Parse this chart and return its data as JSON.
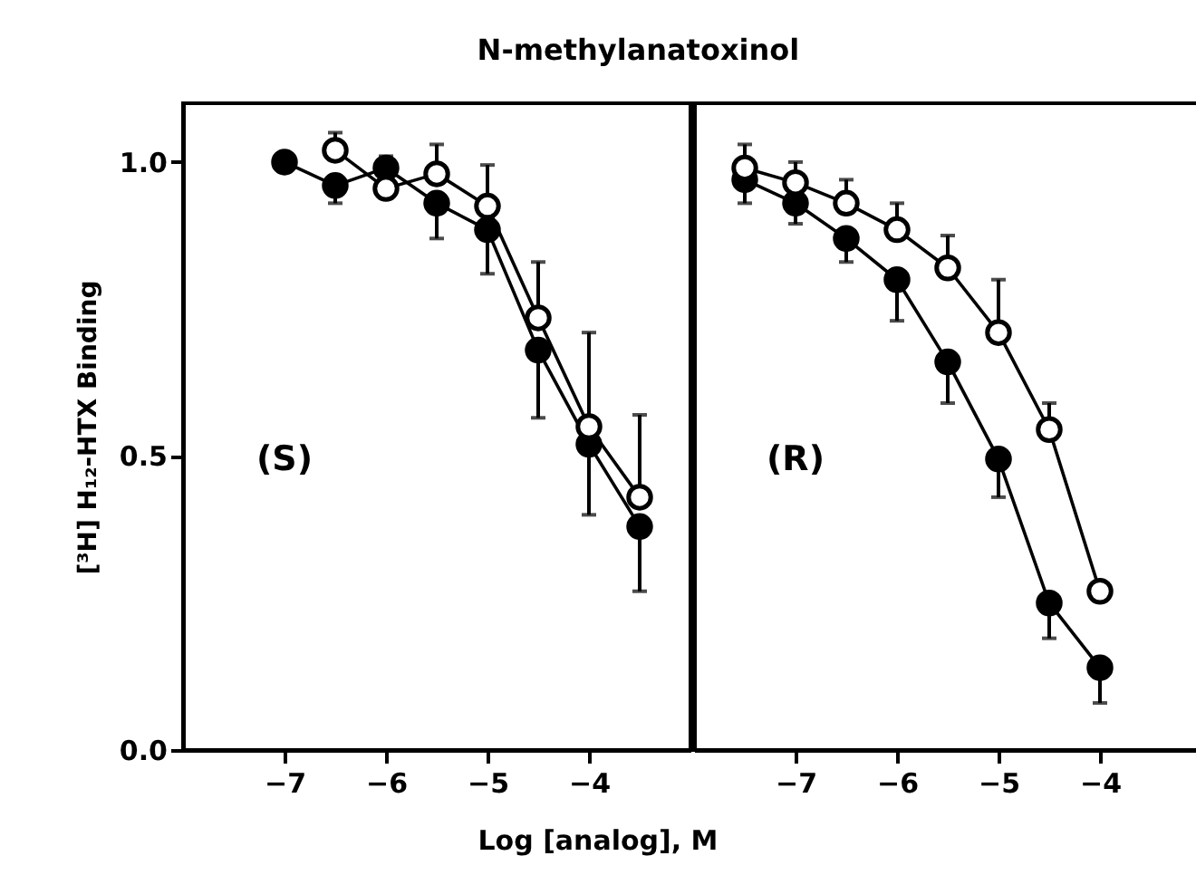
{
  "chart_data": [
    {
      "type": "line",
      "title": "N-methylanatoxinol",
      "xlabel": "Log [analog], M",
      "ylabel": "[³H] H₁₂-HTX Binding",
      "annotations": [
        "(S)"
      ],
      "marker": "circle",
      "grid": false,
      "xlim": [
        -8,
        -3
      ],
      "xticks": [
        -7,
        -6,
        -5,
        -4
      ],
      "ylim": [
        0,
        1.1
      ],
      "yticks": [
        {
          "value": 0,
          "label": "0.0"
        },
        {
          "value": 0.5,
          "label": "0.5"
        },
        {
          "value": 1,
          "label": "1.0"
        }
      ],
      "series": [
        {
          "color": "#000000",
          "x": [
            -7,
            -6.5,
            -6,
            -5.5,
            -5,
            -4.5,
            -4,
            -3.5
          ],
          "values": [
            1.0,
            0.96,
            0.99,
            0.93,
            0.885,
            0.68,
            0.52,
            0.38
          ],
          "errors": [
            null,
            [
              0.93,
              0.96
            ],
            [
              0.99,
              1.01
            ],
            [
              0.87,
              0.93
            ],
            [
              0.81,
              0.885
            ],
            [
              0.565,
              0.68
            ],
            [
              0.4,
              0.52
            ],
            [
              0.27,
              0.38
            ]
          ]
        },
        {
          "color": "#000000",
          "x": [
            -6.5,
            -6,
            -5.5,
            -5,
            -4.5,
            -4,
            -3.5
          ],
          "values": [
            1.02,
            0.955,
            0.98,
            0.925,
            0.735,
            0.55,
            0.43
          ],
          "errors": [
            [
              1.02,
              1.05
            ],
            null,
            [
              0.98,
              1.03
            ],
            [
              0.925,
              0.995
            ],
            [
              0.735,
              0.83
            ],
            [
              0.55,
              0.71
            ],
            [
              0.43,
              0.57
            ]
          ]
        }
      ]
    },
    {
      "type": "line",
      "annotations": [
        "(R)"
      ],
      "marker": "circle",
      "grid": false,
      "tick_labels": "x",
      "xlim": [
        -8,
        -3
      ],
      "xticks": [
        -7,
        -6,
        -5,
        -4
      ],
      "ylim": [
        0,
        1.1
      ],
      "series": [
        {
          "color": "#000000",
          "x": [
            -7.5,
            -7,
            -6.5,
            -6,
            -5.5,
            -5,
            -4.5,
            -4
          ],
          "values": [
            0.97,
            0.93,
            0.87,
            0.8,
            0.66,
            0.495,
            0.25,
            0.14
          ],
          "errors": [
            [
              0.93,
              0.97
            ],
            [
              0.895,
              0.93
            ],
            [
              0.83,
              0.87
            ],
            [
              0.73,
              0.8
            ],
            [
              0.59,
              0.66
            ],
            [
              0.43,
              0.495
            ],
            [
              0.19,
              0.25
            ],
            [
              0.08,
              0.14
            ]
          ]
        },
        {
          "color": "#000000",
          "x": [
            -7.5,
            -7,
            -6.5,
            -6,
            -5.5,
            -5,
            -4.5,
            -4
          ],
          "values": [
            0.99,
            0.965,
            0.93,
            0.885,
            0.82,
            0.71,
            0.545,
            0.27
          ],
          "errors": [
            [
              0.99,
              1.03
            ],
            [
              0.965,
              1.0
            ],
            [
              0.93,
              0.97
            ],
            [
              0.885,
              0.93
            ],
            [
              0.82,
              0.875
            ],
            [
              0.71,
              0.8
            ],
            [
              0.545,
              0.59
            ],
            null
          ]
        }
      ]
    }
  ]
}
